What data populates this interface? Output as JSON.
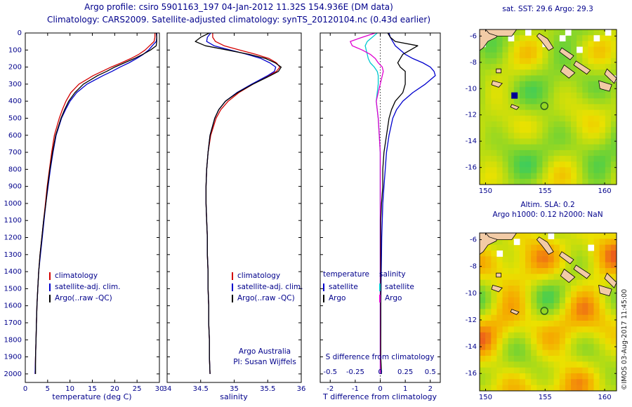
{
  "header": {
    "line1": "Argo profile: csiro 5901163_197 04-Jan-2012 11.32S 154.936E (DM data)",
    "line2": "Climatology: CARS2009. Satellite-adjusted climatology: synTS_20120104.nc (0.43d earlier)"
  },
  "colors": {
    "text": "#00008b",
    "climatology": "#d40000",
    "satellite_clim": "#0000cd",
    "argo": "#000000",
    "s_satellite": "#00c8d0",
    "s_argo": "#e000d0",
    "land": "#f2cba6",
    "marker": "#2d5f1e"
  },
  "panels": {
    "temperature": {
      "xlabel": "temperature (deg C)",
      "legend": [
        {
          "label": "climatology",
          "color": "#d40000"
        },
        {
          "label": "satellite-adj. clim.",
          "color": "#0000cd"
        },
        {
          "label": "Argo(..raw -QC)",
          "color": "#000000"
        }
      ]
    },
    "salinity": {
      "xlabel": "salinity",
      "annotation": [
        "Argo Australia",
        "PI: Susan Wijffels"
      ],
      "legend": [
        {
          "label": "climatology",
          "color": "#d40000"
        },
        {
          "label": "satellite-adj. clim.",
          "color": "#0000cd"
        },
        {
          "label": "Argo(..raw -QC)",
          "color": "#000000"
        }
      ]
    },
    "difference": {
      "xlabel": "T difference from climatology",
      "inner_label": "S difference from climatology",
      "legend_columns": [
        {
          "header": "temperature",
          "items": [
            {
              "label": "satellite",
              "color": "#0000cd"
            },
            {
              "label": "Argo",
              "color": "#000000"
            }
          ]
        },
        {
          "header": "salinity",
          "items": [
            {
              "label": "satellite",
              "color": "#00c8d0"
            },
            {
              "label": "Argo",
              "color": "#e000d0"
            }
          ]
        }
      ]
    }
  },
  "maps": {
    "sst": {
      "title": "sat. SST: 29.6 Argo: 29.3"
    },
    "sla": {
      "title_line1": "Altim. SLA: 0.2",
      "title_line2": "Argo h1000: 0.12 h2000: NaN"
    }
  },
  "watermark": "©IMOS 03-Aug-2017 11:45:00",
  "chart_data": [
    {
      "type": "line",
      "name": "temperature-profile",
      "xlabel": "temperature (deg C)",
      "xlim": [
        0,
        30
      ],
      "x_ticks": [
        0,
        5,
        10,
        15,
        20,
        25,
        30
      ],
      "ylim": [
        0,
        2050
      ],
      "y_ticks": [
        0,
        100,
        200,
        300,
        400,
        500,
        600,
        700,
        800,
        900,
        1000,
        1100,
        1200,
        1300,
        1400,
        1500,
        1600,
        1700,
        1800,
        1900,
        2000
      ],
      "show_y_labels": true,
      "depths": [
        0,
        25,
        50,
        75,
        100,
        125,
        150,
        175,
        200,
        225,
        250,
        300,
        350,
        400,
        450,
        500,
        600,
        700,
        800,
        900,
        1000,
        1100,
        1200,
        1300,
        1400,
        1500,
        1600,
        1700,
        1800,
        1900,
        2000
      ],
      "series": [
        {
          "name": "climatology",
          "color": "#d40000",
          "values": [
            29.0,
            29.0,
            28.8,
            27.8,
            26.8,
            25.4,
            23.6,
            21.5,
            19.2,
            17.2,
            15.2,
            12.0,
            10.2,
            9.1,
            8.3,
            7.6,
            6.5,
            5.9,
            5.4,
            4.9,
            4.5,
            4.1,
            3.7,
            3.3,
            3.0,
            2.8,
            2.6,
            2.5,
            2.4,
            2.3,
            2.2
          ]
        },
        {
          "name": "satellite-adj. clim.",
          "color": "#0000cd",
          "values": [
            29.4,
            29.4,
            29.3,
            28.4,
            27.6,
            26.4,
            24.9,
            23.2,
            21.2,
            19.4,
            17.4,
            13.8,
            11.5,
            10.0,
            9.0,
            8.1,
            6.9,
            6.2,
            5.6,
            5.1,
            4.6,
            4.2,
            3.8,
            3.4,
            3.0,
            2.8,
            2.6,
            2.5,
            2.4,
            2.3,
            2.2
          ]
        },
        {
          "name": "Argo(..raw -QC)",
          "color": "#000000",
          "values": [
            29.3,
            29.4,
            29.4,
            29.3,
            28.0,
            26.3,
            24.4,
            22.2,
            20.0,
            18.2,
            16.2,
            13.0,
            11.1,
            9.7,
            8.8,
            8.0,
            6.8,
            6.1,
            5.5,
            5.0,
            4.6,
            4.1,
            3.7,
            3.3,
            3.0,
            2.8,
            2.6,
            2.5,
            2.4,
            2.3,
            2.3
          ]
        }
      ]
    },
    {
      "type": "line",
      "name": "salinity-profile",
      "xlabel": "salinity",
      "xlim": [
        34,
        36
      ],
      "x_ticks": [
        34,
        34.5,
        35,
        35.5,
        36
      ],
      "ylim": [
        0,
        2050
      ],
      "y_ticks": [
        0,
        100,
        200,
        300,
        400,
        500,
        600,
        700,
        800,
        900,
        1000,
        1100,
        1200,
        1300,
        1400,
        1500,
        1600,
        1700,
        1800,
        1900,
        2000
      ],
      "show_y_labels": false,
      "depths": [
        0,
        25,
        50,
        75,
        100,
        125,
        150,
        175,
        200,
        225,
        250,
        300,
        350,
        400,
        450,
        500,
        600,
        700,
        800,
        900,
        1000,
        1100,
        1200,
        1300,
        1400,
        1500,
        1600,
        1700,
        1800,
        1900,
        2000
      ],
      "series": [
        {
          "name": "climatology",
          "color": "#d40000",
          "values": [
            34.68,
            34.68,
            34.72,
            34.85,
            35.08,
            35.32,
            35.52,
            35.63,
            35.68,
            35.63,
            35.52,
            35.28,
            35.07,
            34.91,
            34.8,
            34.73,
            34.65,
            34.61,
            34.59,
            34.58,
            34.58,
            34.59,
            34.6,
            34.6,
            34.61,
            34.61,
            34.62,
            34.62,
            34.63,
            34.63,
            34.64
          ]
        },
        {
          "name": "satellite-adj. clim.",
          "color": "#0000cd",
          "values": [
            34.65,
            34.6,
            34.59,
            34.7,
            34.94,
            35.19,
            35.4,
            35.53,
            35.62,
            35.6,
            35.5,
            35.26,
            35.04,
            34.87,
            34.77,
            34.71,
            34.64,
            34.61,
            34.59,
            34.58,
            34.58,
            34.59,
            34.6,
            34.6,
            34.61,
            34.61,
            34.62,
            34.62,
            34.63,
            34.63,
            34.64
          ]
        },
        {
          "name": "Argo(..raw -QC)",
          "color": "#000000",
          "values": [
            34.63,
            34.5,
            34.42,
            34.57,
            34.9,
            35.22,
            35.47,
            35.61,
            35.7,
            35.66,
            35.54,
            35.28,
            35.05,
            34.87,
            34.77,
            34.71,
            34.64,
            34.61,
            34.59,
            34.58,
            34.58,
            34.59,
            34.6,
            34.6,
            34.61,
            34.61,
            34.62,
            34.62,
            34.63,
            34.63,
            34.64
          ]
        }
      ]
    },
    {
      "type": "line",
      "name": "difference-from-climatology",
      "xlabel": "T difference from climatology",
      "xlim": [
        -2.4,
        2.4
      ],
      "x_ticks": [
        -2,
        -1,
        0,
        1,
        2
      ],
      "ylim": [
        0,
        2050
      ],
      "y_ticks": [
        0,
        100,
        200,
        300,
        400,
        500,
        600,
        700,
        800,
        900,
        1000,
        1100,
        1200,
        1300,
        1400,
        1500,
        1600,
        1700,
        1800,
        1900,
        2000
      ],
      "show_y_labels": false,
      "zero_line": true,
      "s_axis": {
        "label": "S difference from climatology",
        "ticks": [
          -0.5,
          -0.25,
          0,
          0.25,
          0.5
        ],
        "scale": 4
      },
      "depths": [
        0,
        25,
        50,
        75,
        100,
        125,
        150,
        175,
        200,
        225,
        250,
        300,
        350,
        400,
        450,
        500,
        600,
        700,
        800,
        900,
        1000,
        1100,
        1200,
        1300,
        1400,
        1500,
        1600,
        1700,
        1800,
        1900,
        2000
      ],
      "series": [
        {
          "name": "T satellite",
          "color": "#0000cd",
          "values": [
            0.35,
            0.4,
            0.5,
            0.6,
            0.8,
            1.0,
            1.3,
            1.7,
            2.0,
            2.15,
            2.2,
            1.8,
            1.3,
            0.9,
            0.65,
            0.5,
            0.35,
            0.25,
            0.2,
            0.15,
            0.1,
            0.08,
            0.06,
            0.05,
            0.04,
            0.03,
            0.02,
            0.02,
            0.01,
            0.01,
            0.0
          ]
        },
        {
          "name": "S satellite",
          "color": "#00c8d0",
          "scale": 4,
          "values": [
            -0.03,
            -0.08,
            -0.13,
            -0.15,
            -0.14,
            -0.13,
            -0.12,
            -0.1,
            -0.06,
            -0.03,
            -0.02,
            -0.02,
            -0.03,
            -0.04,
            -0.03,
            -0.02,
            -0.01,
            0,
            0,
            0,
            0,
            0,
            0,
            0,
            0,
            0,
            0,
            0,
            0,
            0,
            0
          ]
        },
        {
          "name": "S Argo",
          "color": "#e000d0",
          "scale": 4,
          "values": [
            -0.05,
            -0.18,
            -0.3,
            -0.28,
            -0.18,
            -0.1,
            -0.05,
            -0.02,
            0.02,
            0.03,
            0.02,
            0.0,
            -0.02,
            -0.04,
            -0.03,
            -0.02,
            -0.01,
            0,
            0,
            0,
            0,
            0,
            0,
            0,
            0,
            0,
            0,
            0,
            0,
            0,
            0
          ]
        },
        {
          "name": "T Argo",
          "color": "#000000",
          "values": [
            0.3,
            0.4,
            0.6,
            1.5,
            1.2,
            0.9,
            0.8,
            0.7,
            0.8,
            1.0,
            1.0,
            1.0,
            0.9,
            0.6,
            0.45,
            0.35,
            0.25,
            0.15,
            0.1,
            0.1,
            0.05,
            0.02,
            0.02,
            0.02,
            0.02,
            0.02,
            0.02,
            0.02,
            0.02,
            0.02,
            0.05
          ]
        }
      ]
    },
    {
      "type": "heatmap",
      "name": "sst-map",
      "title": "sat. SST: 29.6 Argo: 29.3",
      "lon_range": [
        149.5,
        161.0
      ],
      "lat_range": [
        -5.5,
        -17.3
      ],
      "x_ticks": [
        150,
        155,
        160
      ],
      "y_ticks": [
        -6,
        -8,
        -10,
        -12,
        -14,
        -16
      ],
      "marker": {
        "lon": 154.936,
        "lat": -11.32
      },
      "anomaly_cell": {
        "lon": 152.4,
        "lat": -10.5
      },
      "style": {
        "seed": 3.7,
        "t0": 0.26,
        "t1": 0.46
      }
    },
    {
      "type": "heatmap",
      "name": "sla-map",
      "title_line1": "Altim. SLA: 0.2",
      "title_line2": "Argo h1000: 0.12 h2000: NaN",
      "lon_range": [
        149.5,
        161.0
      ],
      "lat_range": [
        -5.5,
        -17.3
      ],
      "x_ticks": [
        150,
        155,
        160
      ],
      "y_ticks": [
        -6,
        -8,
        -10,
        -12,
        -14,
        -16
      ],
      "marker": {
        "lon": 154.936,
        "lat": -11.32
      },
      "style": {
        "seed": 8.2,
        "t0": 0.3,
        "t1": 0.62
      }
    }
  ]
}
